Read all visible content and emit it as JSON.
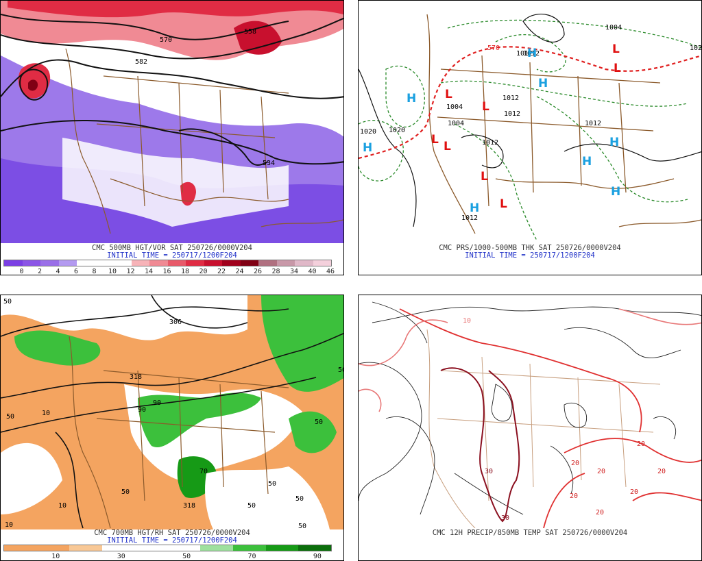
{
  "panels": {
    "vort": {
      "title": "CMC 500MB HGT/VOR SAT 250726/0000V204",
      "init": "INITIAL TIME = 250717/1200F204",
      "contour_labels": [
        "570",
        "558",
        "582",
        "534"
      ],
      "colorbar": {
        "ticks": [
          "0",
          "2",
          "4",
          "6",
          "8",
          "10",
          "12",
          "14",
          "16",
          "18",
          "20",
          "22",
          "24",
          "26",
          "28",
          "34",
          "40",
          "46"
        ],
        "colors": [
          "#7b3fe4",
          "#8b55e6",
          "#9a6fe8",
          "#b39af0",
          "#ffffff",
          "#ffffff",
          "#ffffff",
          "#f7b3b8",
          "#f08a94",
          "#e85a6a",
          "#e02c44",
          "#c8102e",
          "#a0001c",
          "#800014",
          "#b07080",
          "#c898a8",
          "#e0b8c8",
          "#f4d0dc"
        ]
      }
    },
    "pres": {
      "title": "CMC PRS/1000-500MB THK SAT 250726/0000V204",
      "init": "INITIAL TIME = 250717/1200F204",
      "isobar_labels": [
        "1004",
        "1012",
        "1012",
        "1004",
        "1012",
        "1012",
        "1020",
        "1020",
        "1004",
        "1012",
        "1012",
        "1012",
        "102"
      ],
      "thickness_labels": [
        "570"
      ],
      "centers": [
        {
          "t": "H",
          "c": "#1aa0e0"
        },
        {
          "t": "H",
          "c": "#1aa0e0"
        },
        {
          "t": "H",
          "c": "#1aa0e0"
        },
        {
          "t": "H",
          "c": "#1aa0e0"
        },
        {
          "t": "H",
          "c": "#1aa0e0"
        },
        {
          "t": "H",
          "c": "#1aa0e0"
        },
        {
          "t": "H",
          "c": "#1aa0e0"
        },
        {
          "t": "H",
          "c": "#1aa0e0"
        },
        {
          "t": "L",
          "c": "#e01010"
        },
        {
          "t": "L",
          "c": "#e01010"
        },
        {
          "t": "L",
          "c": "#e01010"
        },
        {
          "t": "L",
          "c": "#e01010"
        },
        {
          "t": "L",
          "c": "#e01010"
        },
        {
          "t": "L",
          "c": "#e01010"
        },
        {
          "t": "L",
          "c": "#e01010"
        },
        {
          "t": "L",
          "c": "#e01010"
        }
      ]
    },
    "rh": {
      "title": "CMC 700MB HGT/RH SAT 250726/0000V204",
      "init": "INITIAL TIME = 250717/1200F204",
      "contour_labels": [
        "306",
        "318",
        "50",
        "50",
        "10",
        "10",
        "90",
        "90",
        "50",
        "50",
        "10",
        "50",
        "50",
        "50",
        "50",
        "318",
        "70",
        "50"
      ],
      "colorbar": {
        "ticks": [
          "10",
          "30",
          "50",
          "70",
          "90"
        ],
        "colors": [
          "#f4a460",
          "#f4a460",
          "#f8c896",
          "#ffffff",
          "#ffffff",
          "#ffffff",
          "#9ee09e",
          "#3cc03c",
          "#169a16",
          "#0b6e0b"
        ]
      }
    },
    "precip": {
      "title": "CMC 12H PRECIP/850MB TEMP SAT 250726/0000V204",
      "temp_labels": [
        "20",
        "20",
        "20",
        "20",
        "20",
        "20",
        "30",
        "30",
        "20",
        "10"
      ]
    }
  }
}
